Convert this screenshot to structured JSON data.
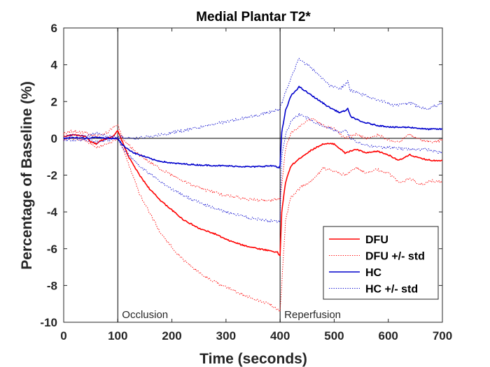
{
  "chart_data": {
    "type": "line",
    "title": "Medial Plantar T2*",
    "xlabel": "Time (seconds)",
    "ylabel": "Percentage of Baseline (%)",
    "xlim": [
      0,
      700
    ],
    "ylim": [
      -10,
      6
    ],
    "xticks": [
      "0",
      "100",
      "200",
      "300",
      "400",
      "500",
      "600",
      "700"
    ],
    "yticks": [
      "-10",
      "-8",
      "-6",
      "-4",
      "-2",
      "0",
      "2",
      "4",
      "6"
    ],
    "grid": false,
    "legend_position": "bottom-right",
    "annotations": [
      {
        "text": "Occlusion",
        "x": 100
      },
      {
        "text": "Reperfusion",
        "x": 400
      }
    ],
    "colors": {
      "dfu": "#ff0000",
      "hc": "#0000cc",
      "axis": "#262626"
    },
    "series": [
      {
        "name": "DFU",
        "style": "solid",
        "color": "#ff0000",
        "x": [
          0,
          20,
          40,
          50,
          60,
          70,
          80,
          90,
          100,
          110,
          120,
          140,
          160,
          180,
          200,
          220,
          250,
          280,
          300,
          330,
          360,
          380,
          395,
          400,
          403,
          410,
          420,
          440,
          460,
          480,
          500,
          520,
          540,
          560,
          580,
          600,
          620,
          640,
          660,
          680,
          700
        ],
        "y": [
          0.1,
          0.2,
          0.1,
          -0.2,
          -0.3,
          -0.1,
          0.0,
          0.1,
          0.4,
          -0.3,
          -1.0,
          -2.0,
          -2.8,
          -3.4,
          -3.9,
          -4.4,
          -4.9,
          -5.2,
          -5.5,
          -5.8,
          -6.0,
          -6.1,
          -6.2,
          -6.4,
          -4.0,
          -2.4,
          -1.5,
          -1.0,
          -0.6,
          -0.3,
          -0.3,
          -0.8,
          -0.6,
          -0.8,
          -0.7,
          -0.9,
          -1.2,
          -0.9,
          -1.1,
          -1.2,
          -1.2
        ]
      },
      {
        "name": "DFU +/- std",
        "style": "dotted",
        "color": "#ff0000",
        "x": [
          0,
          20,
          40,
          60,
          80,
          100,
          110,
          140,
          180,
          220,
          260,
          300,
          340,
          380,
          400,
          410,
          420,
          440,
          460,
          480,
          500,
          520,
          540,
          560,
          580,
          600,
          620,
          640,
          660,
          680,
          700
        ],
        "y": [
          0.3,
          0.4,
          0.3,
          0.1,
          0.3,
          0.8,
          -0.1,
          -0.9,
          -1.7,
          -2.3,
          -2.8,
          -3.1,
          -3.3,
          -3.4,
          -3.3,
          -0.6,
          0.3,
          0.7,
          1.1,
          0.7,
          0.5,
          0.0,
          0.2,
          0.0,
          0.2,
          -0.1,
          -0.2,
          0.2,
          -0.1,
          -0.2,
          -0.1
        ]
      },
      {
        "name": "DFU -std",
        "style": "dotted",
        "color": "#ff0000",
        "x": [
          0,
          20,
          40,
          60,
          80,
          100,
          110,
          140,
          180,
          220,
          260,
          300,
          340,
          380,
          400,
          410,
          420,
          440,
          460,
          480,
          500,
          520,
          540,
          560,
          580,
          600,
          620,
          640,
          660,
          680,
          700
        ],
        "y": [
          -0.1,
          0.0,
          -0.1,
          -0.5,
          -0.3,
          0.0,
          -0.6,
          -3.0,
          -5.2,
          -6.6,
          -7.5,
          -8.1,
          -8.6,
          -9.0,
          -9.4,
          -4.5,
          -3.2,
          -2.6,
          -2.3,
          -1.6,
          -1.8,
          -2.0,
          -1.6,
          -1.9,
          -1.7,
          -1.9,
          -2.4,
          -2.2,
          -2.5,
          -2.3,
          -2.4
        ]
      },
      {
        "name": "HC",
        "style": "solid",
        "color": "#0000cc",
        "x": [
          0,
          20,
          40,
          60,
          80,
          100,
          110,
          130,
          150,
          170,
          200,
          250,
          300,
          350,
          380,
          390,
          398,
          400,
          403,
          410,
          420,
          435,
          450,
          470,
          490,
          510,
          520,
          525,
          530,
          550,
          580,
          610,
          640,
          670,
          700
        ],
        "y": [
          0.0,
          0.05,
          0.0,
          0.05,
          0.0,
          0.0,
          -0.4,
          -0.8,
          -1.0,
          -1.2,
          -1.35,
          -1.45,
          -1.5,
          -1.55,
          -1.5,
          -1.5,
          -1.6,
          -1.5,
          0.3,
          1.5,
          2.3,
          2.8,
          2.5,
          2.1,
          1.7,
          1.4,
          1.5,
          1.6,
          1.2,
          0.9,
          0.7,
          0.6,
          0.6,
          0.5,
          0.5
        ]
      },
      {
        "name": "HC +/- std",
        "style": "dotted",
        "color": "#0000cc",
        "x": [
          0,
          20,
          40,
          60,
          80,
          100,
          130,
          160,
          200,
          250,
          300,
          350,
          390,
          400,
          403,
          410,
          420,
          435,
          450,
          470,
          490,
          510,
          520,
          525,
          530,
          550,
          580,
          610,
          640,
          670,
          700
        ],
        "y": [
          0.1,
          0.2,
          0.1,
          0.3,
          0.1,
          0.1,
          0.0,
          0.1,
          0.3,
          0.6,
          0.9,
          1.2,
          1.5,
          1.6,
          1.9,
          2.5,
          3.3,
          4.3,
          4.0,
          3.5,
          2.9,
          2.7,
          2.9,
          3.1,
          2.6,
          2.4,
          2.1,
          1.8,
          1.9,
          1.6,
          1.9
        ]
      },
      {
        "name": "HC -std",
        "style": "dotted",
        "color": "#0000cc",
        "x": [
          0,
          20,
          40,
          60,
          80,
          100,
          110,
          140,
          180,
          220,
          260,
          300,
          340,
          380,
          400,
          403,
          410,
          420,
          435,
          450,
          470,
          490,
          510,
          520,
          530,
          550,
          580,
          610,
          640,
          670,
          700
        ],
        "y": [
          -0.1,
          -0.1,
          -0.1,
          -0.2,
          -0.1,
          0.0,
          -0.6,
          -1.5,
          -2.4,
          -3.1,
          -3.6,
          -4.0,
          -4.3,
          -4.5,
          -4.5,
          -1.0,
          0.2,
          0.9,
          1.3,
          1.1,
          0.8,
          0.6,
          0.3,
          0.5,
          0.0,
          -0.3,
          -0.5,
          -0.5,
          -0.6,
          -0.6,
          -0.8
        ]
      }
    ],
    "legend": [
      {
        "label": "DFU",
        "style": "solid",
        "color": "#ff0000"
      },
      {
        "label": "DFU +/- std",
        "style": "dotted",
        "color": "#ff0000"
      },
      {
        "label": "HC",
        "style": "solid",
        "color": "#0000cc"
      },
      {
        "label": "HC +/- std",
        "style": "dotted",
        "color": "#0000cc"
      }
    ]
  }
}
